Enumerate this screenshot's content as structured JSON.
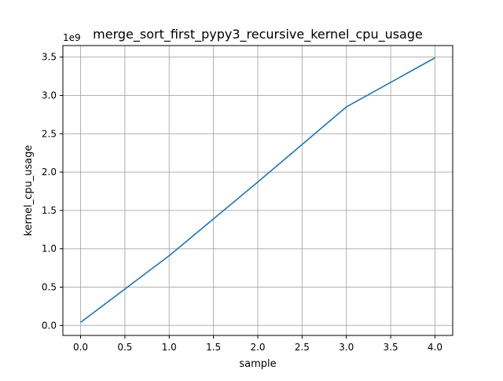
{
  "chart_data": {
    "type": "line",
    "title": "merge_sort_first_pypy3_recursive_kernel_cpu_usage",
    "xlabel": "sample",
    "ylabel": "kernel_cpu_usage",
    "y_offset_label": "1e9",
    "xlim": [
      -0.2,
      4.2
    ],
    "ylim": [
      -0.13,
      3.65
    ],
    "x_ticks": [
      0.0,
      0.5,
      1.0,
      1.5,
      2.0,
      2.5,
      3.0,
      3.5,
      4.0
    ],
    "x_tick_labels": [
      "0.0",
      "0.5",
      "1.0",
      "1.5",
      "2.0",
      "2.5",
      "3.0",
      "3.5",
      "4.0"
    ],
    "y_ticks": [
      0.0,
      0.5,
      1.0,
      1.5,
      2.0,
      2.5,
      3.0,
      3.5
    ],
    "y_tick_labels": [
      "0.0",
      "0.5",
      "1.0",
      "1.5",
      "2.0",
      "2.5",
      "3.0",
      "3.5"
    ],
    "grid": true,
    "legend": "none",
    "series": [
      {
        "x": [
          0,
          1,
          2,
          3,
          4
        ],
        "values": [
          0.04,
          0.91,
          1.87,
          2.85,
          3.49
        ],
        "color": "#1f77b4"
      }
    ]
  }
}
